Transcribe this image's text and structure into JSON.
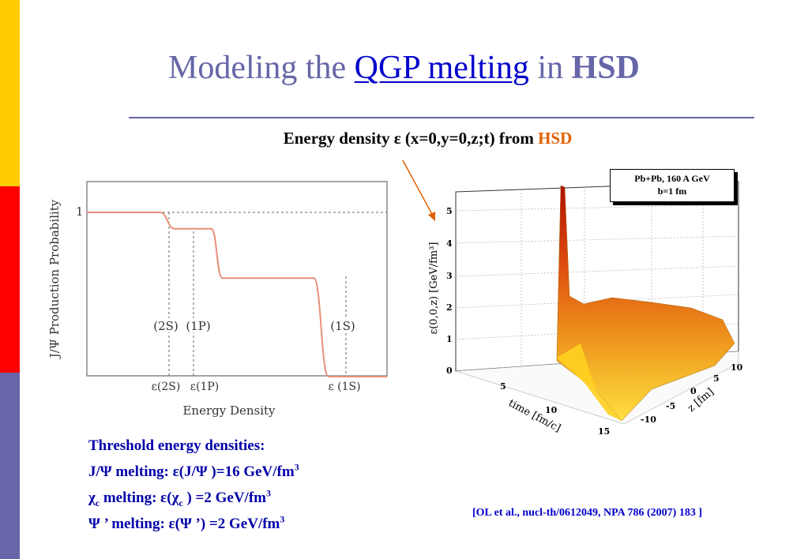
{
  "slide": {
    "title_part1": "Modeling the ",
    "title_highlight": "QGP melting",
    "title_part2": " in ",
    "title_part3": "HSD",
    "subtitle_part1": "Energy density ε (x=0,y=0,z;t) from ",
    "subtitle_part2": "HSD",
    "threshold_heading": "Threshold energy densities:",
    "line1_a": "J/Ψ melting:  ε(J/Ψ )=16  GeV/fm",
    "line1_sup": "3",
    "line2_a": " χ",
    "line2_sub1": "c",
    "line2_b": " melting:   ε(χ",
    "line2_sub2": "c",
    "line2_c": " ) =2 GeV/fm",
    "line2_sup": "3",
    "line3_a": "Ψ ’ melting:  ε(Ψ ’) =2 GeV/fm",
    "line3_sup": "3",
    "reference": "[OL et al., nucl-th/0612049, NPA 786 (2007) 183 ]",
    "colors": {
      "sidebar_yellow": "#FFCC00",
      "sidebar_red": "#FF0000",
      "sidebar_purple": "#6666A8",
      "title": "#6666A8",
      "highlight": "#0000CC",
      "hsd_orange": "#E06000"
    }
  },
  "chart_data": [
    {
      "type": "line",
      "ylabel": "J/Ψ Production Probability",
      "xlabel": "Energy Density",
      "y_tick": "1",
      "x_ticks": [
        "ε(2S)",
        "ε(1P)",
        "ε (1S)"
      ],
      "step_labels": [
        "(2S)",
        "(1P)",
        "(1S)"
      ],
      "x": [
        0,
        2.0,
        2.4,
        3.4,
        3.7,
        6.2,
        6.6,
        8.2
      ],
      "y": [
        1,
        1,
        0.9,
        0.9,
        0.6,
        0.6,
        0.0,
        0.0
      ],
      "xlim": [
        0,
        8.2
      ],
      "ylim": [
        0,
        1.15
      ],
      "line_color": "#E8907A"
    },
    {
      "type": "surface",
      "legend_line1": "Pb+Pb, 160 A GeV",
      "legend_line2": "b=1 fm",
      "zlabel": "ε(0,0,z) [GeV/fm³]",
      "z_ticks": [
        "0",
        "1",
        "2",
        "3",
        "4",
        "5"
      ],
      "time_label": "time [fm/c]",
      "time_ticks": [
        "5",
        "10",
        "15"
      ],
      "zaxis_label": "z [fm]",
      "zaxis_ticks": [
        "10",
        "5",
        "0",
        "-5",
        "-10"
      ]
    }
  ]
}
